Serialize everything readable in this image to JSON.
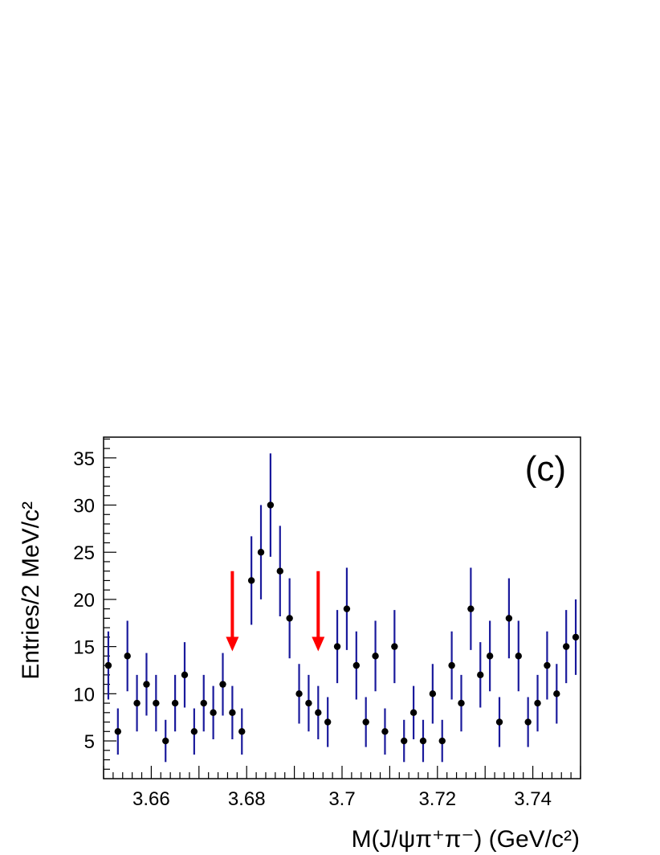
{
  "chart_data": {
    "type": "scatter",
    "panel_label": "(c)",
    "xlabel": "M(J/ψπ⁺π⁻) (GeV/c²)",
    "ylabel": "Entries/2 MeV/c²",
    "xlim": [
      3.65,
      3.75
    ],
    "ylim": [
      1,
      37.2
    ],
    "xticks": [
      "3.66",
      "3.68",
      "3.7",
      "3.72",
      "3.74"
    ],
    "yticks": [
      "5",
      "10",
      "15",
      "20",
      "25",
      "30",
      "35"
    ],
    "grid": false,
    "series": [
      {
        "x": [
          3.651,
          3.653,
          3.655,
          3.657,
          3.659,
          3.661,
          3.663,
          3.665,
          3.667,
          3.669,
          3.671,
          3.673,
          3.675,
          3.677,
          3.679,
          3.681,
          3.683,
          3.685,
          3.687,
          3.689,
          3.691,
          3.693,
          3.695,
          3.697,
          3.699,
          3.701,
          3.703,
          3.705,
          3.707,
          3.709,
          3.711,
          3.713,
          3.715,
          3.717,
          3.719,
          3.721,
          3.723,
          3.725,
          3.727,
          3.729,
          3.731,
          3.733,
          3.735,
          3.737,
          3.739,
          3.741,
          3.743,
          3.745,
          3.747,
          3.749
        ],
        "y": [
          13,
          6,
          14,
          9,
          11,
          9,
          5,
          9,
          12,
          6,
          9,
          8,
          11,
          8,
          6,
          22,
          25,
          30,
          23,
          18,
          10,
          9,
          8,
          7,
          15,
          19,
          13,
          7,
          14,
          6,
          15,
          5,
          8,
          5,
          10,
          5,
          13,
          9,
          19,
          12,
          14,
          7,
          18,
          14,
          7,
          9,
          13,
          10,
          15,
          16
        ],
        "error": "sqrt",
        "marker_color": "#000000",
        "error_color": "#1a1a9c"
      }
    ],
    "annotations": [
      {
        "type": "arrow",
        "x": 3.677,
        "y_from": 23,
        "y_to": 14.5,
        "color": "#ff0000"
      },
      {
        "type": "arrow",
        "x": 3.695,
        "y_from": 23,
        "y_to": 14.5,
        "color": "#ff0000"
      }
    ]
  }
}
